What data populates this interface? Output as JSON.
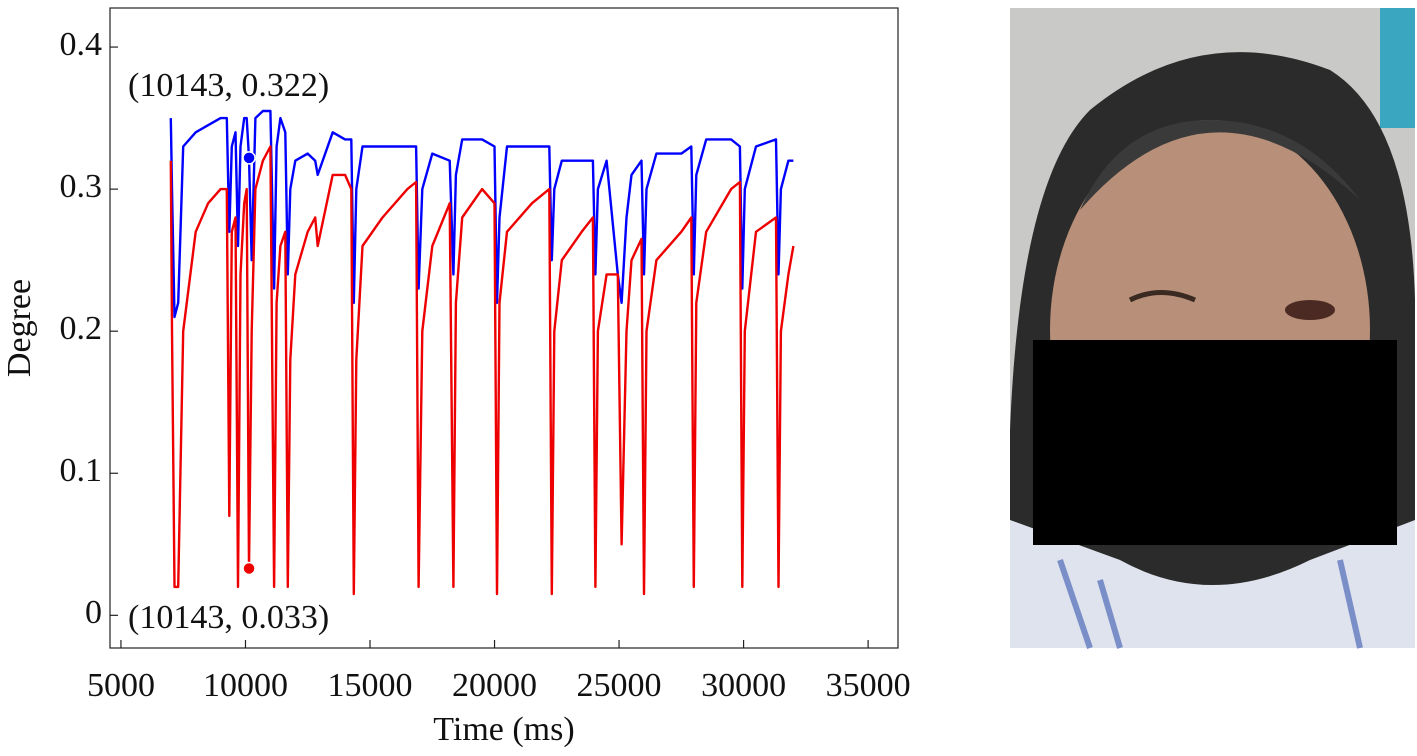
{
  "chart_data": {
    "type": "line",
    "xlabel": "Time (ms)",
    "ylabel": "Degree",
    "x": [
      7000,
      7050,
      7150,
      7300,
      7500,
      8000,
      8500,
      9000,
      9250,
      9350,
      9450,
      9600,
      9700,
      9800,
      9950,
      10050,
      10143,
      10250,
      10400,
      10700,
      11000,
      11150,
      11250,
      11400,
      11600,
      11700,
      11800,
      12000,
      12500,
      12800,
      12900,
      13500,
      14000,
      14250,
      14350,
      14450,
      14700,
      15500,
      16500,
      16850,
      16950,
      17100,
      17500,
      18200,
      18350,
      18450,
      18700,
      19500,
      20000,
      20100,
      20200,
      20500,
      21500,
      22200,
      22300,
      22400,
      22700,
      23500,
      23950,
      24050,
      24150,
      24500,
      24950,
      25100,
      25300,
      25500,
      25900,
      26000,
      26100,
      26500,
      27500,
      27900,
      28000,
      28100,
      28500,
      29500,
      29850,
      29950,
      30050,
      30500,
      31300,
      31400,
      31500,
      31800,
      32000
    ],
    "series": [
      {
        "color": "#0000ff",
        "values": [
          0.35,
          0.3,
          0.21,
          0.22,
          0.33,
          0.34,
          0.345,
          0.35,
          0.35,
          0.27,
          0.33,
          0.34,
          0.26,
          0.33,
          0.35,
          0.35,
          0.322,
          0.25,
          0.35,
          0.355,
          0.355,
          0.23,
          0.33,
          0.35,
          0.34,
          0.24,
          0.3,
          0.32,
          0.325,
          0.32,
          0.31,
          0.34,
          0.335,
          0.335,
          0.22,
          0.3,
          0.33,
          0.33,
          0.33,
          0.33,
          0.23,
          0.3,
          0.325,
          0.32,
          0.24,
          0.31,
          0.335,
          0.335,
          0.33,
          0.22,
          0.28,
          0.33,
          0.33,
          0.33,
          0.25,
          0.3,
          0.32,
          0.32,
          0.32,
          0.24,
          0.3,
          0.32,
          0.24,
          0.22,
          0.28,
          0.31,
          0.32,
          0.24,
          0.3,
          0.325,
          0.325,
          0.33,
          0.24,
          0.31,
          0.335,
          0.335,
          0.33,
          0.23,
          0.3,
          0.33,
          0.335,
          0.24,
          0.3,
          0.32,
          0.32
        ]
      },
      {
        "color": "#ee0000",
        "values": [
          0.32,
          0.2,
          0.02,
          0.02,
          0.2,
          0.27,
          0.29,
          0.3,
          0.3,
          0.07,
          0.27,
          0.28,
          0.02,
          0.24,
          0.29,
          0.3,
          0.033,
          0.2,
          0.3,
          0.32,
          0.33,
          0.02,
          0.22,
          0.26,
          0.27,
          0.02,
          0.18,
          0.24,
          0.27,
          0.28,
          0.26,
          0.31,
          0.31,
          0.3,
          0.015,
          0.18,
          0.26,
          0.28,
          0.3,
          0.305,
          0.02,
          0.2,
          0.26,
          0.29,
          0.02,
          0.22,
          0.28,
          0.3,
          0.29,
          0.015,
          0.22,
          0.27,
          0.29,
          0.3,
          0.015,
          0.2,
          0.25,
          0.27,
          0.28,
          0.02,
          0.2,
          0.24,
          0.24,
          0.05,
          0.2,
          0.25,
          0.265,
          0.015,
          0.2,
          0.25,
          0.27,
          0.28,
          0.02,
          0.22,
          0.27,
          0.3,
          0.305,
          0.02,
          0.2,
          0.27,
          0.28,
          0.02,
          0.2,
          0.24,
          0.26
        ]
      }
    ],
    "annotations": [
      {
        "text": "(10143, 0.322)",
        "x": 10143,
        "y": 0.322,
        "color": "#0000ff"
      },
      {
        "text": "(10143, 0.033)",
        "x": 10143,
        "y": 0.033,
        "color": "#ee0000"
      }
    ],
    "xlim": [
      4560,
      36200
    ],
    "ylim": [
      -0.023,
      0.4275
    ],
    "xticks": [
      5000,
      10000,
      15000,
      20000,
      25000,
      30000,
      35000
    ],
    "yticks": [
      0,
      0.1,
      0.2,
      0.3,
      0.4
    ]
  }
}
